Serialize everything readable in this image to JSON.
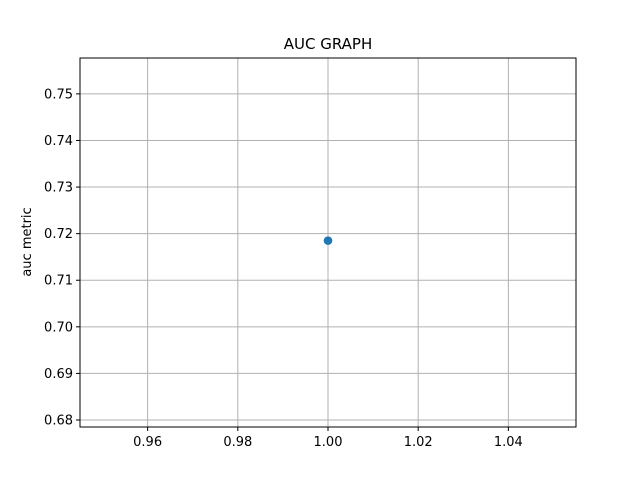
{
  "chart_data": {
    "type": "scatter",
    "title": "AUC GRAPH",
    "xlabel": "",
    "ylabel": "auc metric",
    "xlim": [
      0.945,
      1.055
    ],
    "ylim": [
      0.6785,
      0.7577
    ],
    "xticks": [
      0.96,
      0.98,
      1.0,
      1.02,
      1.04
    ],
    "xtick_labels": [
      "0.96",
      "0.98",
      "1.00",
      "1.02",
      "1.04"
    ],
    "yticks": [
      0.68,
      0.69,
      0.7,
      0.71,
      0.72,
      0.73,
      0.74,
      0.75
    ],
    "ytick_labels": [
      "0.68",
      "0.69",
      "0.70",
      "0.71",
      "0.72",
      "0.73",
      "0.74",
      "0.75"
    ],
    "grid": true,
    "series": [
      {
        "color": "#1f77b4",
        "points": [
          {
            "x": 1.0,
            "y": 0.7185
          }
        ]
      }
    ]
  }
}
